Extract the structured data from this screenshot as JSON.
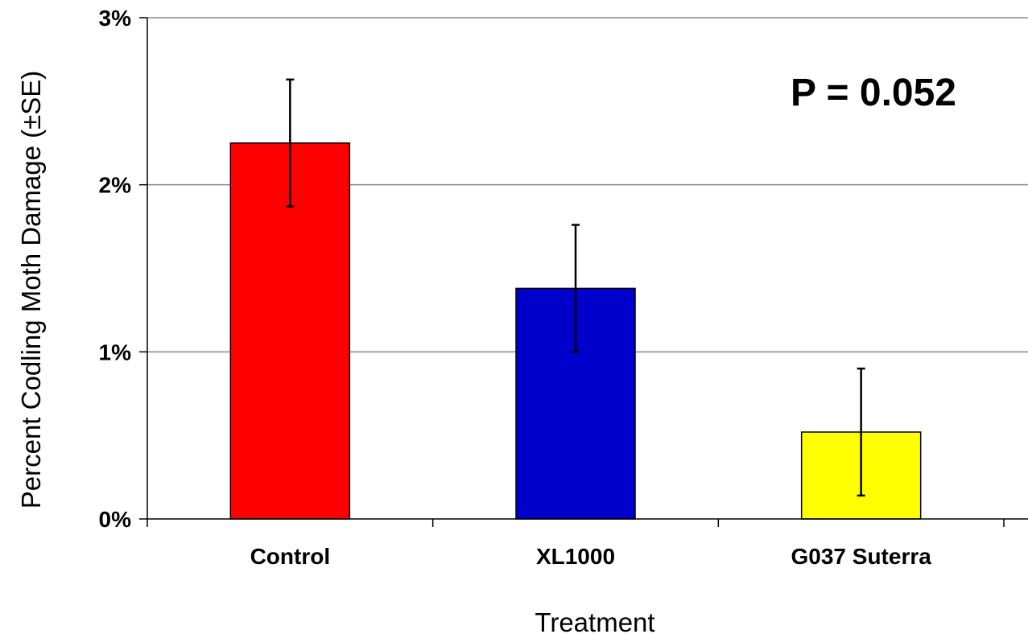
{
  "chart_data": {
    "type": "bar",
    "categories": [
      "Control",
      "XL1000",
      "G037 Suterra"
    ],
    "values": [
      2.25,
      1.38,
      0.52
    ],
    "errors": [
      0.38,
      0.38,
      0.38
    ],
    "colors": [
      "#FF0000",
      "#0000CC",
      "#FFFF00"
    ],
    "xlabel": "Treatment",
    "ylabel": "Percent Codling Moth Damage (±SE)",
    "ylim": [
      0,
      3
    ],
    "yticks": [
      0,
      1,
      2,
      3
    ],
    "ytick_labels": [
      "0%",
      "1%",
      "2%",
      "3%"
    ],
    "grid": true,
    "legend": "none",
    "annotation": "P = 0.052"
  }
}
